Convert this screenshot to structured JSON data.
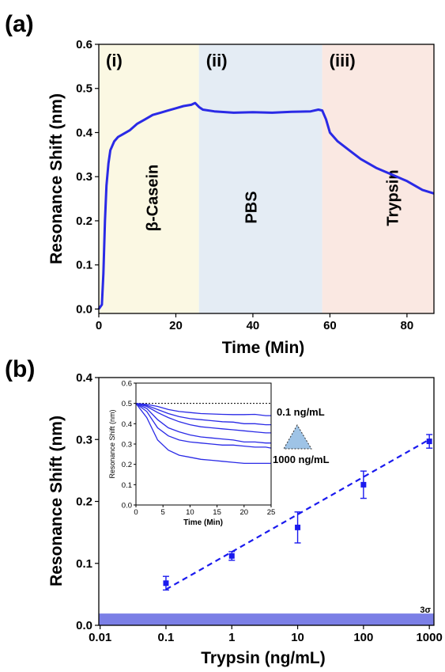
{
  "chart_data": [
    {
      "panel_label": "(a)",
      "type": "line",
      "xlabel": "Time (Min)",
      "ylabel": "Resonance Shift (nm)",
      "xlim": [
        0,
        87
      ],
      "ylim": [
        -0.01,
        0.6
      ],
      "xticks": [
        0,
        20,
        40,
        60,
        80
      ],
      "yticks": [
        0.0,
        0.1,
        0.2,
        0.3,
        0.4,
        0.5,
        0.6
      ],
      "regions": [
        {
          "label": "(i)",
          "name": "β-Casein",
          "x_start": 0,
          "x_end": 26,
          "color": "#fbf8e3"
        },
        {
          "label": "(ii)",
          "name": "PBS",
          "x_start": 26,
          "x_end": 58,
          "color": "#e4ecf4"
        },
        {
          "label": "(iii)",
          "name": "Trypsin",
          "x_start": 58,
          "x_end": 87,
          "color": "#fae8e2"
        }
      ],
      "line_color": "#2a2ae6",
      "series": [
        {
          "x": [
            0,
            0.8,
            1.2,
            1.6,
            2.0,
            2.5,
            3,
            4,
            5,
            6,
            8,
            10,
            12,
            14,
            16,
            18,
            20,
            22,
            24,
            25,
            26,
            27,
            30,
            35,
            40,
            45,
            50,
            55,
            57,
            58,
            59,
            60,
            62,
            65,
            68,
            72,
            76,
            80,
            84,
            87
          ],
          "y": [
            0.0,
            0.01,
            0.08,
            0.2,
            0.28,
            0.33,
            0.36,
            0.38,
            0.39,
            0.395,
            0.405,
            0.42,
            0.43,
            0.44,
            0.445,
            0.45,
            0.455,
            0.46,
            0.463,
            0.467,
            0.458,
            0.452,
            0.448,
            0.445,
            0.446,
            0.445,
            0.447,
            0.448,
            0.452,
            0.45,
            0.43,
            0.4,
            0.38,
            0.36,
            0.34,
            0.32,
            0.305,
            0.29,
            0.27,
            0.262
          ]
        }
      ]
    },
    {
      "panel_label": "(b)",
      "type": "scatter",
      "xlabel": "Trypsin (ng/mL)",
      "ylabel": "Resonance Shift (nm)",
      "xscale": "log",
      "xlim": [
        0.01,
        1000
      ],
      "ylim": [
        0.0,
        0.4
      ],
      "xtick_labels": [
        "0.01",
        "0.1",
        "1",
        "10",
        "100",
        "1000"
      ],
      "xticks": [
        0.01,
        0.1,
        1,
        10,
        100,
        1000
      ],
      "yticks": [
        0.0,
        0.1,
        0.2,
        0.3,
        0.4
      ],
      "points": [
        {
          "x": 0.1,
          "y": 0.068,
          "err": 0.011
        },
        {
          "x": 1,
          "y": 0.112,
          "err": 0.007
        },
        {
          "x": 10,
          "y": 0.158,
          "err": 0.025
        },
        {
          "x": 100,
          "y": 0.227,
          "err": 0.022
        },
        {
          "x": 1000,
          "y": 0.297,
          "err": 0.011
        }
      ],
      "fit_line": {
        "x": [
          0.1,
          1000
        ],
        "y": [
          0.058,
          0.3
        ]
      },
      "threshold_band": {
        "label": "3σ",
        "y0": 0.0,
        "y1": 0.019,
        "color": "#7b7fe6"
      },
      "marker_color": "#1a1aee"
    },
    {
      "panel_label": "inset",
      "type": "line",
      "xlabel": "Time (Min)",
      "ylabel": "Resonance Shift (nm)",
      "xlim": [
        0,
        25
      ],
      "ylim": [
        0.0,
        0.6
      ],
      "xticks": [
        0,
        5,
        10,
        15,
        20,
        25
      ],
      "yticks": [
        0.0,
        0.1,
        0.2,
        0.3,
        0.4,
        0.5,
        0.6
      ],
      "baseline": 0.5,
      "annotation_top": "0.1 ng/mL",
      "annotation_bottom": "1000 ng/mL",
      "series": [
        {
          "x": [
            0,
            2,
            4,
            6,
            8,
            10,
            12,
            14,
            16,
            18,
            20,
            22,
            24,
            25
          ],
          "y": [
            0.5,
            0.495,
            0.485,
            0.47,
            0.46,
            0.455,
            0.45,
            0.448,
            0.446,
            0.445,
            0.445,
            0.446,
            0.44,
            0.44
          ]
        },
        {
          "x": [
            0,
            2,
            4,
            6,
            8,
            10,
            12,
            14,
            16,
            18,
            20,
            22,
            24,
            25
          ],
          "y": [
            0.5,
            0.49,
            0.47,
            0.45,
            0.435,
            0.425,
            0.42,
            0.415,
            0.41,
            0.408,
            0.4,
            0.4,
            0.395,
            0.395
          ]
        },
        {
          "x": [
            0,
            2,
            4,
            6,
            8,
            10,
            12,
            14,
            16,
            18,
            20,
            22,
            24,
            25
          ],
          "y": [
            0.5,
            0.485,
            0.455,
            0.43,
            0.41,
            0.395,
            0.385,
            0.38,
            0.375,
            0.37,
            0.365,
            0.36,
            0.355,
            0.355
          ]
        },
        {
          "x": [
            0,
            2,
            4,
            6,
            8,
            10,
            12,
            14,
            16,
            18,
            20,
            22,
            24,
            25
          ],
          "y": [
            0.5,
            0.475,
            0.42,
            0.38,
            0.36,
            0.345,
            0.335,
            0.33,
            0.325,
            0.32,
            0.31,
            0.31,
            0.305,
            0.305
          ]
        },
        {
          "x": [
            0,
            2,
            4,
            6,
            8,
            10,
            12,
            14,
            16,
            18,
            20,
            22,
            24,
            25
          ],
          "y": [
            0.5,
            0.46,
            0.38,
            0.34,
            0.32,
            0.31,
            0.305,
            0.3,
            0.295,
            0.295,
            0.29,
            0.285,
            0.285,
            0.28
          ]
        },
        {
          "x": [
            0,
            2,
            4,
            6,
            8,
            10,
            12,
            14,
            16,
            18,
            20,
            22,
            24,
            25
          ],
          "y": [
            0.5,
            0.43,
            0.32,
            0.27,
            0.245,
            0.235,
            0.225,
            0.22,
            0.215,
            0.21,
            0.205,
            0.205,
            0.205,
            0.205
          ]
        }
      ]
    }
  ]
}
